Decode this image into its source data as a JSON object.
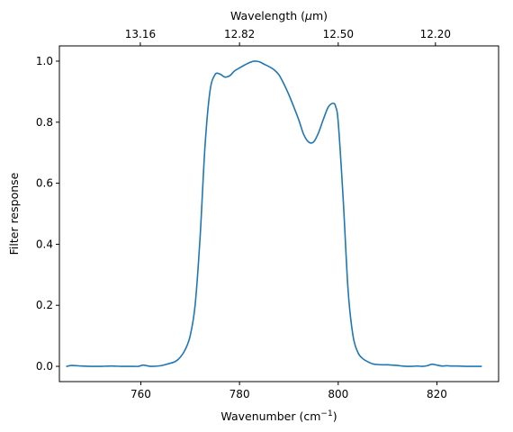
{
  "chart_data": {
    "type": "line",
    "xlabel": "Wavenumber (cm",
    "xlabel_sup": "−1",
    "xlabel_end": ")",
    "ylabel": "Filter response",
    "top_xlabel": "Wavelength (",
    "top_xlabel_mu": "μ",
    "top_xlabel_end": "m)",
    "xlim": [
      743.5,
      832.5
    ],
    "ylim": [
      -0.05,
      1.05
    ],
    "xticks": [
      760,
      780,
      800,
      820
    ],
    "xtick_labels": [
      "760",
      "780",
      "800",
      "820"
    ],
    "yticks": [
      0.0,
      0.2,
      0.4,
      0.6,
      0.8,
      1.0
    ],
    "ytick_labels": [
      "0.0",
      "0.2",
      "0.4",
      "0.6",
      "0.8",
      "1.0"
    ],
    "top_xticks": [
      759.9,
      780.0,
      800.0,
      819.7
    ],
    "top_xtick_labels": [
      "13.16",
      "12.82",
      "12.50",
      "12.20"
    ],
    "grid": false,
    "color": "#1f77b4",
    "series": [
      {
        "x": [
          745.0,
          746.0,
          748.0,
          750.0,
          752.0,
          754.0,
          756.0,
          758.0,
          759.5,
          760.5,
          762.0,
          764.0,
          765.5,
          767.0,
          768.0,
          769.0,
          770.0,
          771.0,
          772.0,
          773.0,
          774.0,
          775.0,
          776.0,
          777.0,
          778.0,
          779.0,
          780.0,
          781.0,
          782.0,
          783.0,
          784.0,
          785.0,
          786.0,
          787.0,
          788.0,
          789.0,
          790.0,
          791.0,
          792.0,
          793.0,
          794.0,
          795.0,
          796.0,
          797.0,
          798.0,
          799.0,
          799.5,
          800.0,
          801.0,
          802.0,
          803.0,
          804.0,
          805.0,
          806.0,
          807.0,
          808.0,
          809.0,
          810.0,
          811.0,
          812.0,
          813.0,
          814.0,
          815.0,
          816.0,
          817.0,
          818.0,
          819.0,
          820.0,
          821.0,
          822.0,
          823.0,
          824.0,
          826.0,
          828.0,
          829.0
        ],
        "y": [
          0.0,
          0.003,
          0.001,
          0.0,
          0.0,
          0.001,
          0.0,
          0.0,
          0.0,
          0.004,
          0.0,
          0.002,
          0.008,
          0.016,
          0.03,
          0.055,
          0.1,
          0.2,
          0.42,
          0.72,
          0.9,
          0.955,
          0.958,
          0.948,
          0.952,
          0.968,
          0.978,
          0.987,
          0.995,
          1.0,
          0.998,
          0.99,
          0.982,
          0.972,
          0.955,
          0.925,
          0.89,
          0.85,
          0.808,
          0.76,
          0.735,
          0.735,
          0.765,
          0.81,
          0.85,
          0.862,
          0.85,
          0.8,
          0.55,
          0.25,
          0.1,
          0.045,
          0.025,
          0.015,
          0.008,
          0.006,
          0.005,
          0.005,
          0.004,
          0.003,
          0.001,
          0.0,
          0.0,
          0.001,
          0.0,
          0.002,
          0.007,
          0.004,
          0.001,
          0.002,
          0.001,
          0.001,
          0.0,
          0.0,
          0.0
        ]
      }
    ]
  }
}
